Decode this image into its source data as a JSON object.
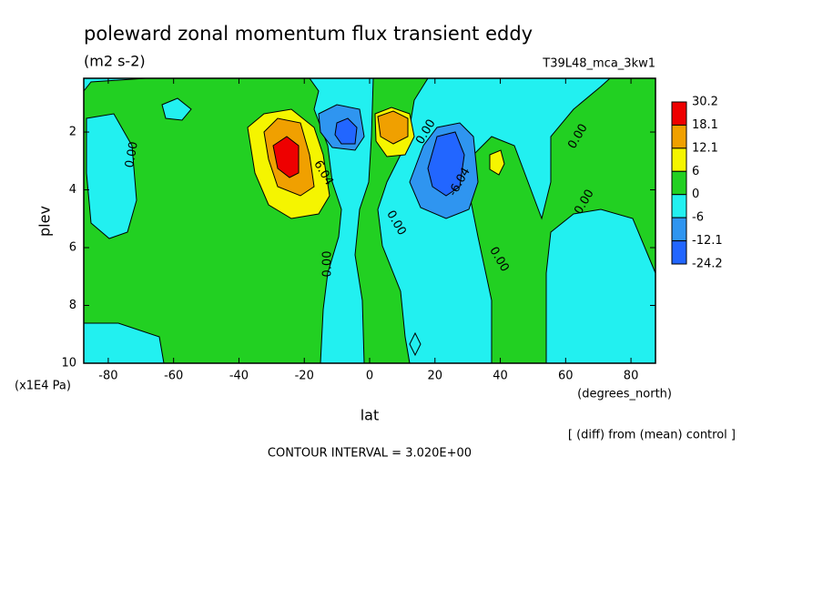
{
  "chart_data": {
    "type": "contour",
    "title": "poleward zonal momentum flux transient eddy",
    "subtitle": "(m2 s-2)",
    "run_label": "T39L48_mca_3kw1",
    "x_label": "lat",
    "x_unit": "(degrees_north)",
    "y_label": "plev",
    "y_unit": "(x1E4 Pa)",
    "note": "[ (diff) from (mean) control ]",
    "contour_interval": "CONTOUR INTERVAL = 3.020E+00",
    "xlim": [
      -87.5,
      87.5
    ],
    "xticks": [
      -80,
      -60,
      -40,
      -20,
      0,
      20,
      40,
      60,
      80
    ],
    "ylim": [
      10,
      0.14
    ],
    "yticks": [
      2,
      4,
      6,
      8,
      10
    ],
    "colorbar": {
      "levels": [
        30.2,
        18.1,
        12.1,
        6,
        0,
        -6,
        -12.1,
        -24.2
      ],
      "colors": [
        "#ee0000",
        "#f0a000",
        "#f5f500",
        "#22d022",
        "#22f0f0",
        "#2f95f0",
        "#2266ff"
      ]
    },
    "contour_labels": [
      {
        "value": 0,
        "label": "0.00"
      },
      {
        "value": 6.04,
        "label": "6.04"
      },
      {
        "value": 0,
        "label": "0.00"
      },
      {
        "value": 0,
        "label": "0.00"
      },
      {
        "value": 0,
        "label": "0.00"
      },
      {
        "value": -6.04,
        "label": "-6.04"
      },
      {
        "value": 0,
        "label": "0.00"
      },
      {
        "value": 0,
        "label": "0.00"
      },
      {
        "value": 0,
        "label": "0.00"
      }
    ]
  }
}
